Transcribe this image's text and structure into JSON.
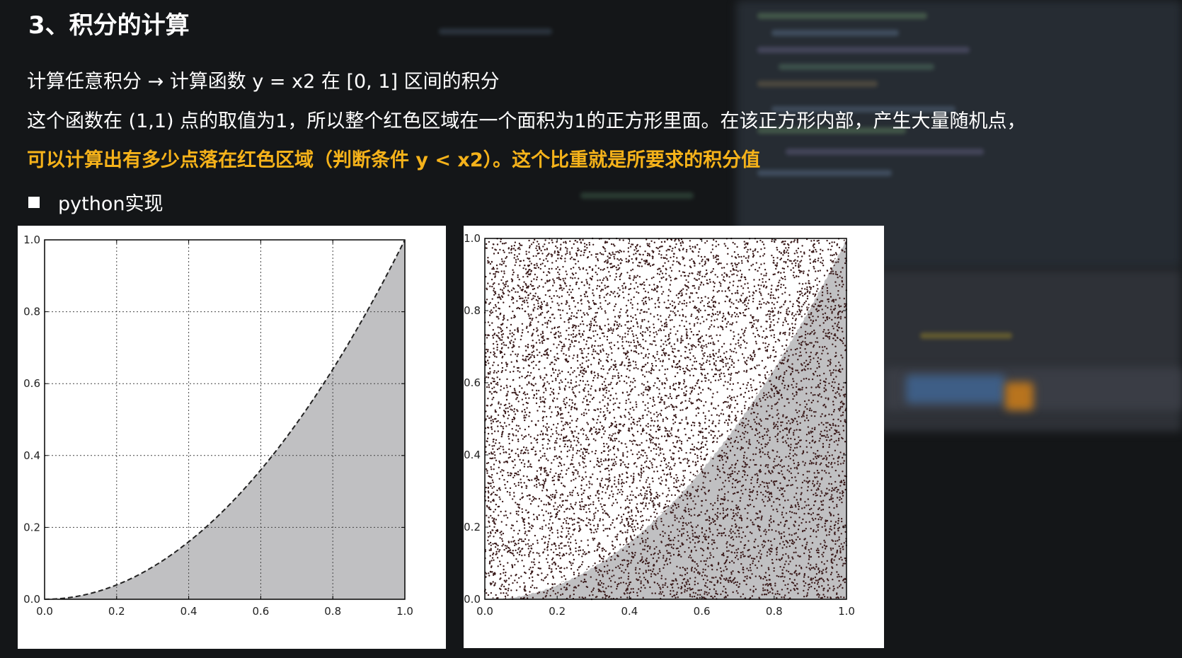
{
  "slide": {
    "title": "3、积分的计算",
    "line1": "计算任意积分 → 计算函数 y = x2 在 [0, 1] 区间的积分",
    "line2": "这个函数在 (1,1) 点的取值为1，所以整个红色区域在一个面积为1的正方形里面。在该正方形内部，产生大量随机点，",
    "line3_highlight": "可以计算出有多少点落在红色区域（判断条件 y < x2）。这个比重就是所要求的积分值",
    "bullet": "python实现",
    "highlight_color": "#f5b21a"
  },
  "chart_data": [
    {
      "type": "area",
      "function": "y = x^2",
      "x": [
        0.0,
        0.1,
        0.2,
        0.3,
        0.4,
        0.5,
        0.6,
        0.7,
        0.8,
        0.9,
        1.0
      ],
      "y": [
        0.0,
        0.01,
        0.04,
        0.09,
        0.16,
        0.25,
        0.36,
        0.49,
        0.64,
        0.81,
        1.0
      ],
      "fill_color": "#c0c0c2",
      "line_style": "dashed",
      "xlim": [
        0.0,
        1.0
      ],
      "ylim": [
        0.0,
        1.0
      ],
      "xticks": [
        "0.0",
        "0.2",
        "0.4",
        "0.6",
        "0.8",
        "1.0"
      ],
      "yticks": [
        "0.0",
        "0.2",
        "0.4",
        "0.6",
        "0.8",
        "1.0"
      ],
      "grid": true
    },
    {
      "type": "scatter",
      "description_of_points": "uniform random points in unit square",
      "point_count": 10000,
      "point_color": "#3a1a1a",
      "fill_under_curve": "y = x^2",
      "fill_color": "#c0c0c2",
      "xlim": [
        0.0,
        1.0
      ],
      "ylim": [
        0.0,
        1.0
      ],
      "xticks": [
        "0.0",
        "0.2",
        "0.4",
        "0.6",
        "0.8",
        "1.0"
      ],
      "yticks": [
        "0.0",
        "0.2",
        "0.4",
        "0.6",
        "0.8",
        "1.0"
      ],
      "grid": false
    }
  ]
}
